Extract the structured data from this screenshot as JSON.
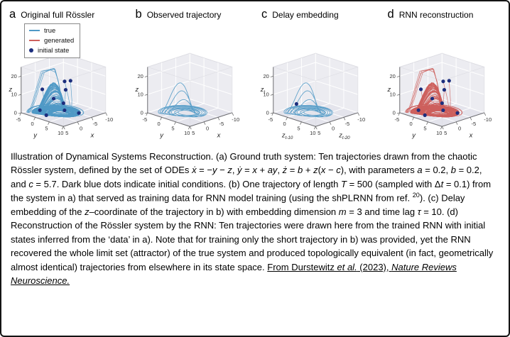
{
  "chart_data": {
    "type": "line",
    "system": "Rössler attractor (3D trajectories)",
    "ode_params": {
      "a": 0.2,
      "b": 0.2,
      "c": 5.7
    },
    "colors": {
      "true_line": "#4f99c6",
      "generated_line": "#cd5f5c",
      "initial_state": "#1c2e7d",
      "pane": "#ececf1",
      "grid": "#ffffff"
    },
    "axes": {
      "z_ticks": [
        {
          "l": "0",
          "v": 0
        },
        {
          "l": "10",
          "v": 10
        },
        {
          "l": "20",
          "v": 20
        }
      ],
      "y_ticks": [
        {
          "l": "-5",
          "v": -5
        },
        {
          "l": "0",
          "v": 0
        },
        {
          "l": "5",
          "v": 5
        },
        {
          "l": "10",
          "v": 10
        }
      ],
      "x_ticks": [
        {
          "l": "5",
          "v": 5
        },
        {
          "l": "0",
          "v": 0
        },
        {
          "l": "-5",
          "v": -5
        },
        {
          "l": "-10",
          "v": -10
        }
      ]
    },
    "legend": {
      "items": [
        {
          "label": "true",
          "swatch": "line",
          "color": "#4f99c6"
        },
        {
          "label": "generated",
          "swatch": "line",
          "color": "#cd5f5c"
        },
        {
          "label": "initial state",
          "swatch": "dot",
          "color": "#1c2e7d"
        }
      ]
    },
    "panels": [
      {
        "letter": "a",
        "title": "Original full Rössler",
        "type": "full",
        "line_color": "#4f99c6",
        "axis_labels": {
          "z": {
            "m": "z",
            "s": ""
          },
          "y": {
            "m": "y",
            "s": ""
          },
          "x": {
            "m": "x",
            "s": ""
          }
        },
        "seeds": [
          [
            -4.5,
            2,
            21
          ],
          [
            1,
            3.5,
            23
          ],
          [
            -7,
            -3,
            12
          ],
          [
            3,
            -7.5,
            14
          ],
          [
            8.5,
            -4,
            3
          ],
          [
            -9,
            -6,
            1
          ],
          [
            5,
            7,
            6
          ],
          [
            -2,
            9,
            2.5
          ],
          [
            10,
            1,
            2
          ],
          [
            -6,
            -9,
            4
          ]
        ]
      },
      {
        "letter": "b",
        "title": "Observed trajectory",
        "type": "single",
        "line_color": "#4f99c6",
        "axis_labels": {
          "z": {
            "m": "z",
            "s": ""
          },
          "y": {
            "m": "y",
            "s": ""
          },
          "x": {
            "m": "x",
            "s": ""
          }
        },
        "seed": [
          1.5,
          4.5,
          0.5
        ]
      },
      {
        "letter": "c",
        "title": "Delay embedding",
        "type": "embed",
        "line_color": "#4f99c6",
        "axis_labels": {
          "z": {
            "m": "z",
            "s": "t"
          },
          "y": {
            "m": "z",
            "s": "t-10"
          },
          "x": {
            "m": "z",
            "s": "t-20"
          }
        },
        "seed": [
          1.5,
          4.5,
          0.5
        ]
      },
      {
        "letter": "d",
        "title": "RNN reconstruction",
        "type": "full",
        "line_color": "#cd5f5c",
        "axis_labels": {
          "z": {
            "m": "z",
            "s": ""
          },
          "y": {
            "m": "y",
            "s": ""
          },
          "x": {
            "m": "x",
            "s": ""
          }
        },
        "seeds": [
          [
            -4.5,
            2,
            21
          ],
          [
            1,
            3.5,
            23
          ],
          [
            -7,
            -3,
            12
          ],
          [
            3,
            -7.5,
            14
          ],
          [
            8.5,
            -4,
            3
          ],
          [
            -9,
            -6,
            1
          ],
          [
            5,
            7,
            6
          ],
          [
            -2,
            9,
            2.5
          ],
          [
            10,
            1,
            2
          ],
          [
            -6,
            -9,
            4
          ]
        ]
      }
    ]
  },
  "figure_caption_segments": [
    {
      "t": "Illustration of Dynamical Systems Reconstruction. (a) Ground truth system: Ten trajectories drawn from the chaotic Rössler system, defined by the set of ODEs "
    },
    {
      "t": "ẋ",
      "s": "i"
    },
    {
      "t": " = −"
    },
    {
      "t": "y",
      "s": "i"
    },
    {
      "t": " − "
    },
    {
      "t": "z",
      "s": "i"
    },
    {
      "t": ", "
    },
    {
      "t": "ẏ",
      "s": "i"
    },
    {
      "t": " = "
    },
    {
      "t": "x",
      "s": "i"
    },
    {
      "t": " + "
    },
    {
      "t": "ay",
      "s": "i"
    },
    {
      "t": ", "
    },
    {
      "t": "ż",
      "s": "i"
    },
    {
      "t": " = "
    },
    {
      "t": "b",
      "s": "i"
    },
    {
      "t": " + "
    },
    {
      "t": "z",
      "s": "i"
    },
    {
      "t": "("
    },
    {
      "t": "x",
      "s": "i"
    },
    {
      "t": " − "
    },
    {
      "t": "c",
      "s": "i"
    },
    {
      "t": "), with parameters "
    },
    {
      "t": "a",
      "s": "i"
    },
    {
      "t": " = 0.2, "
    },
    {
      "t": "b",
      "s": "i"
    },
    {
      "t": " = 0.2, and "
    },
    {
      "t": "c",
      "s": "i"
    },
    {
      "t": " = 5.7. Dark blue dots indicate initial conditions. (b) One trajectory of length "
    },
    {
      "t": "T",
      "s": "i"
    },
    {
      "t": " = 500 (sampled with Δ"
    },
    {
      "t": "t",
      "s": "i"
    },
    {
      "t": " = 0.1) from the system in a) that served as training data for RNN model training (using the shPLRNN from ref. "
    },
    {
      "t": "20",
      "s": "p"
    },
    {
      "t": "). (c) Delay embedding of the "
    },
    {
      "t": "z",
      "s": "i"
    },
    {
      "t": "–coordinate of the trajectory in b) with embedding dimension "
    },
    {
      "t": "m",
      "s": "i"
    },
    {
      "t": " = 3 and time lag "
    },
    {
      "t": "τ",
      "s": "i"
    },
    {
      "t": " = 10. (d) Reconstruction of the Rössler system by the RNN: Ten trajectories were drawn here from the trained RNN with initial states inferred from the ‘data’ in a). Note that for training only the short trajectory in b) was provided, yet the RNN recovered the whole limit set (attractor) of the true system and produced topologically equivalent (in fact, geometrically almost identical) trajectories from elsewhere in its state space. "
    },
    {
      "t": "From Durstewitz ",
      "s": "u"
    },
    {
      "t": "et al.",
      "s": "iu"
    },
    {
      "t": " (2023), ",
      "s": "u"
    },
    {
      "t": "Nature Reviews Neuroscience.",
      "s": "iu"
    }
  ]
}
